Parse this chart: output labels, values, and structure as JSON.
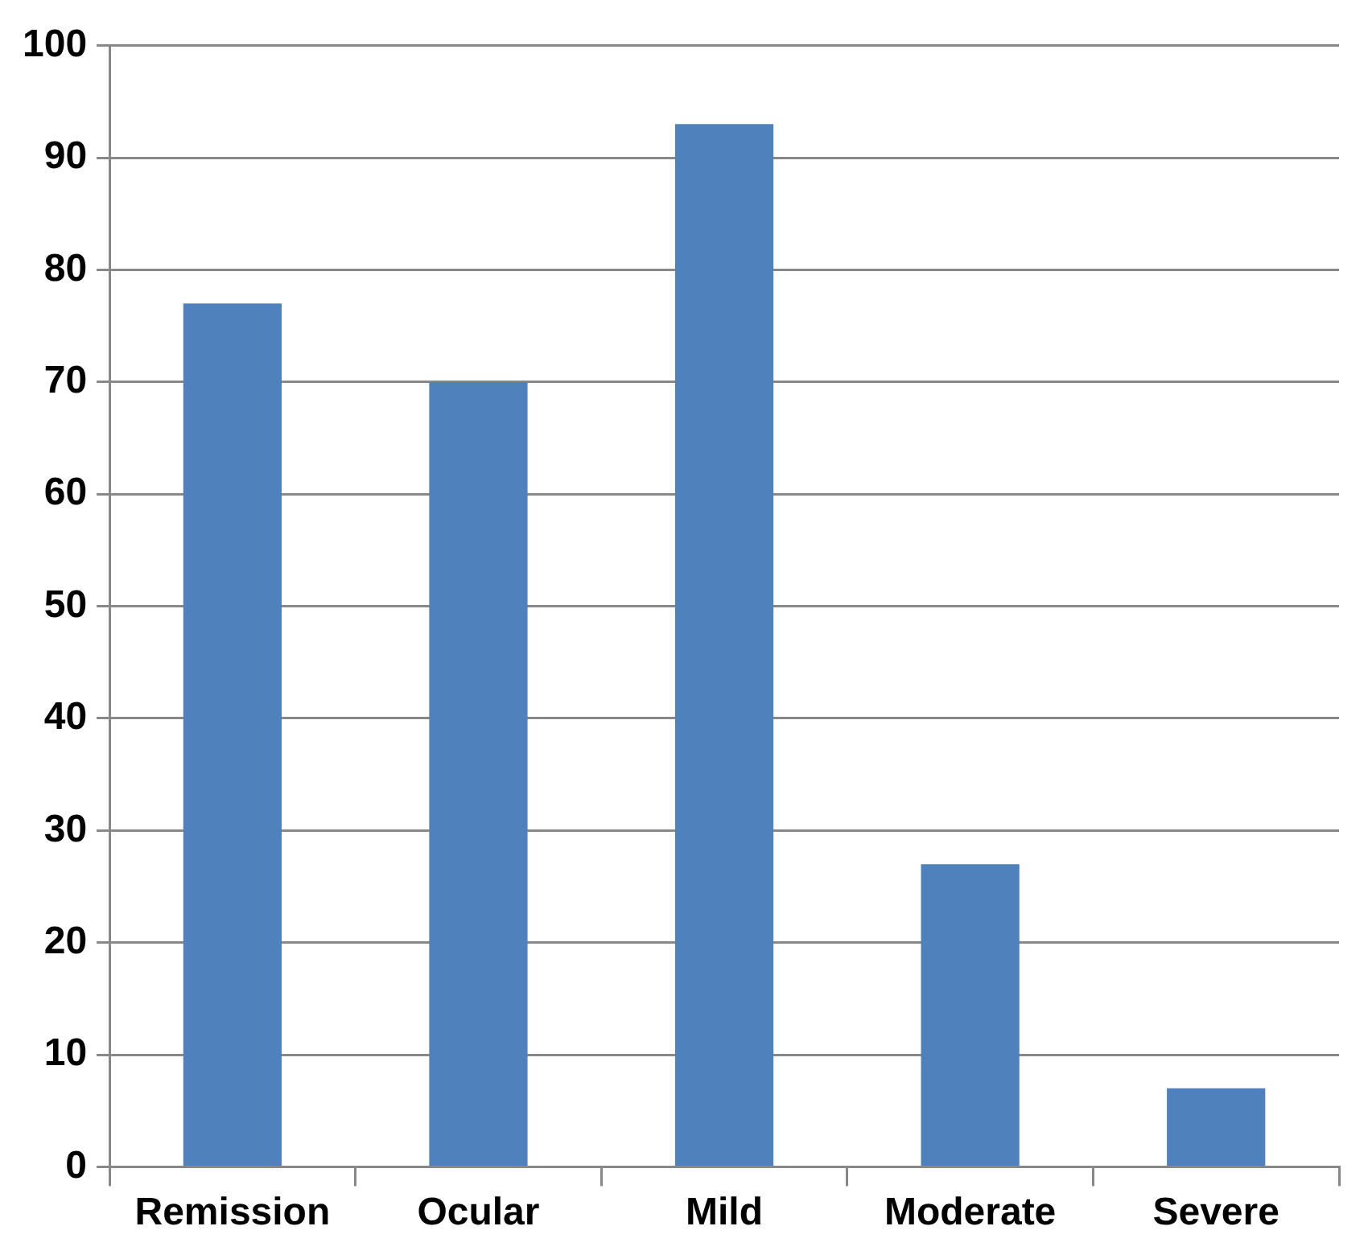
{
  "chart_data": {
    "type": "bar",
    "categories": [
      "Remission",
      "Ocular",
      "Mild",
      "Moderate",
      "Severe"
    ],
    "values": [
      77,
      70,
      93,
      27,
      7
    ],
    "color": "#4f81bd",
    "ylim": [
      0,
      100
    ],
    "yticks": [
      0,
      10,
      20,
      30,
      40,
      50,
      60,
      70,
      80,
      90,
      100
    ],
    "grid": "y",
    "legend": false
  }
}
